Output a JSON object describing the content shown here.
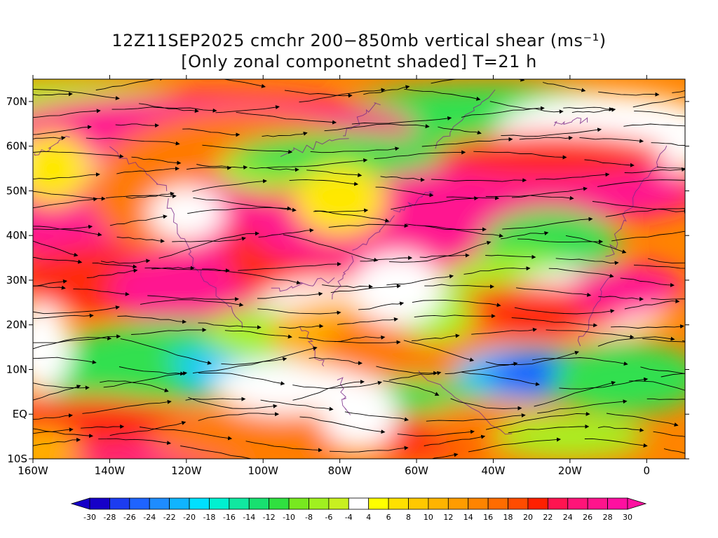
{
  "title_line1": "12Z11SEP2025 cmchr 200−850mb vertical shear (ms⁻¹)",
  "title_line2": "[Only zonal componetnt shaded] T=21 h",
  "lat_labels": [
    "70N",
    "60N",
    "50N",
    "40N",
    "30N",
    "20N",
    "10N",
    "EQ",
    "10S"
  ],
  "lat_values": [
    70,
    60,
    50,
    40,
    30,
    20,
    10,
    0,
    -10
  ],
  "lon_labels": [
    "160W",
    "140W",
    "120W",
    "100W",
    "80W",
    "60W",
    "40W",
    "20W",
    "0"
  ],
  "lon_values": [
    -160,
    -140,
    -120,
    -100,
    -80,
    -60,
    -40,
    -20,
    0
  ],
  "map_extent": {
    "lon_min": -160,
    "lon_max": 10,
    "lat_min": -10,
    "lat_max": 75
  },
  "colorbar": {
    "labels": [
      "-30",
      "-28",
      "-26",
      "-24",
      "-22",
      "-20",
      "-18",
      "-16",
      "-14",
      "-12",
      "-10",
      "-8",
      "-6",
      "-4",
      "4",
      "6",
      "8",
      "10",
      "12",
      "14",
      "16",
      "18",
      "20",
      "22",
      "24",
      "26",
      "28",
      "30"
    ],
    "colors": [
      "#1600c8",
      "#1c3cf0",
      "#1e64ff",
      "#1e8cff",
      "#10b4ff",
      "#00e0ff",
      "#00f0d0",
      "#10e8a0",
      "#18e070",
      "#30e040",
      "#78e820",
      "#a0f020",
      "#c8f020",
      "#ffffff",
      "#ffff00",
      "#ffe000",
      "#ffc800",
      "#ffb400",
      "#ff9c00",
      "#ff8400",
      "#ff6c00",
      "#ff4c00",
      "#ff2000",
      "#ff1450",
      "#ff1478",
      "#ff148c",
      "#ff10a0"
    ]
  },
  "shear_units": "m/s"
}
